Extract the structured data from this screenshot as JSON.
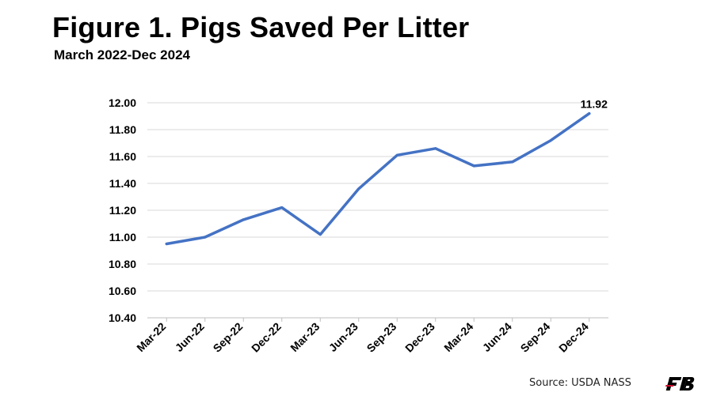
{
  "title": "Figure 1. Pigs Saved Per Litter",
  "subtitle": "March 2022-Dec 2024",
  "source": "Source: USDA NASS",
  "logo_text": "FB",
  "chart_data": {
    "type": "line",
    "title": "",
    "xlabel": "",
    "ylabel": "",
    "categories": [
      "Mar-22",
      "Jun-22",
      "Sep-22",
      "Dec-22",
      "Mar-23",
      "Jun-23",
      "Sep-23",
      "Dec-23",
      "Mar-24",
      "Jun-24",
      "Sep-24",
      "Dec-24"
    ],
    "series": [
      {
        "name": "",
        "values": [
          10.95,
          11.0,
          11.13,
          11.22,
          11.02,
          11.36,
          11.61,
          11.66,
          11.53,
          11.56,
          11.72,
          11.92
        ],
        "color": "#4472C4"
      }
    ],
    "ylim": [
      10.4,
      12.0
    ],
    "ytick_labels": [
      "10.40",
      "10.60",
      "10.80",
      "11.00",
      "11.20",
      "11.40",
      "11.60",
      "11.80",
      "12.00"
    ],
    "grid": true,
    "data_labels": [
      {
        "index": 11,
        "label": "11.92"
      }
    ]
  }
}
